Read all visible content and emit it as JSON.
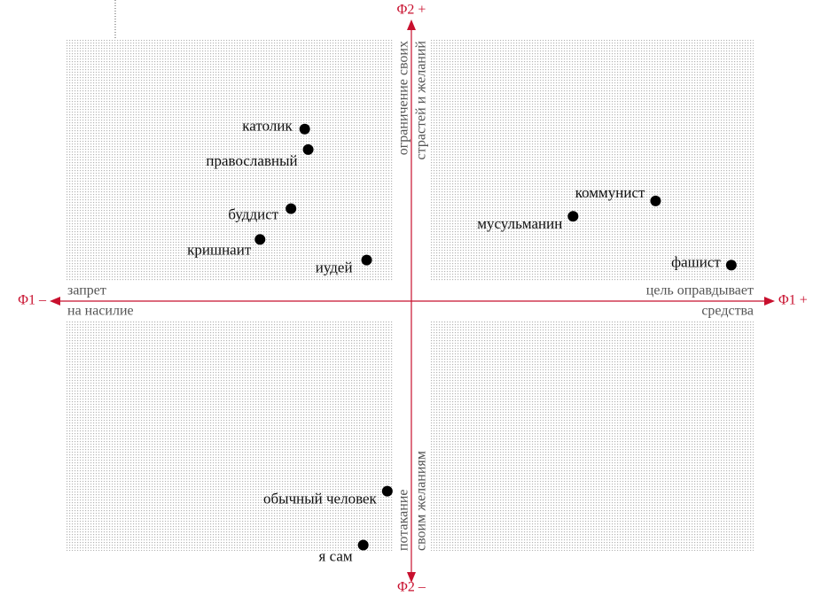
{
  "chart_data": {
    "type": "scatter",
    "labels": [
      "католик",
      "православный",
      "буддист",
      "кришнаит",
      "иудей",
      "коммунист",
      "мусульманин",
      "фашист",
      "обычный человек",
      "я сам"
    ],
    "x": [
      -0.31,
      -0.3,
      -0.35,
      -0.44,
      -0.13,
      0.71,
      0.47,
      0.93,
      -0.07,
      -0.14
    ],
    "values": [
      0.67,
      0.59,
      0.36,
      0.24,
      0.16,
      0.39,
      0.33,
      0.14,
      -0.74,
      -0.95
    ],
    "color": "#000000",
    "axis_color": "#c8102e",
    "xlim": [
      -1,
      1
    ],
    "ylim": [
      -1,
      1
    ],
    "axis_names": {
      "x_neg": "Φ1 –",
      "x_pos": "Φ1 +",
      "y_pos": "Φ2 +",
      "y_neg": "Φ2 –"
    },
    "pole_labels": {
      "left": [
        "запрет",
        "на насилие"
      ],
      "right": [
        "цель оправдывает",
        "средства"
      ],
      "top": [
        "ограничение своих",
        "страстей и желаний"
      ],
      "bottom": [
        "потакание",
        "своим желаниям"
      ]
    }
  }
}
